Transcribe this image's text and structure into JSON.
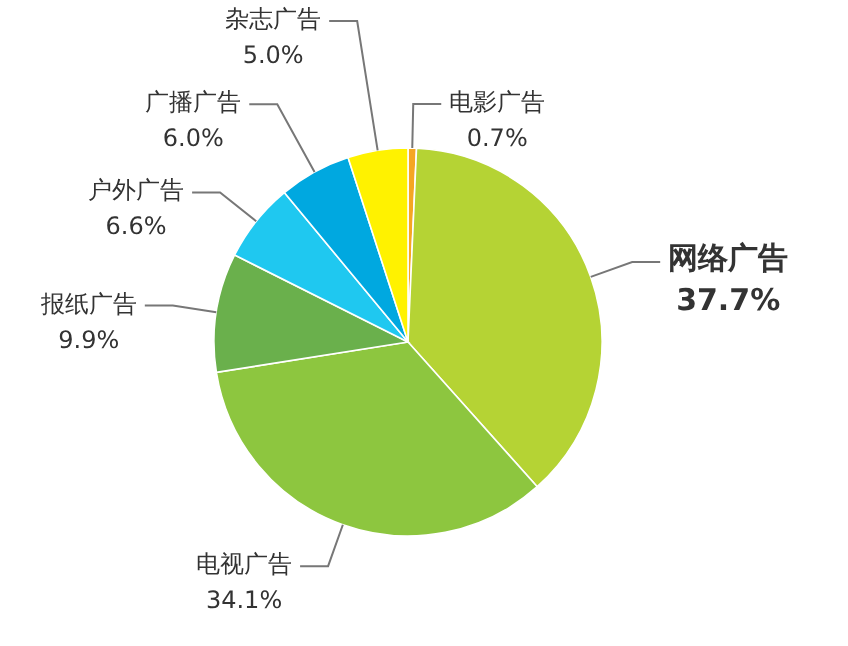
{
  "chart_data": {
    "type": "pie",
    "categories": [
      "电影广告",
      "网络广告",
      "电视广告",
      "报纸广告",
      "户外广告",
      "广播广告",
      "杂志广告"
    ],
    "values": [
      0.7,
      37.7,
      34.1,
      9.9,
      6.6,
      6.0,
      5.0
    ],
    "value_labels": [
      "0.7%",
      "37.7%",
      "34.1%",
      "9.9%",
      "6.6%",
      "6.0%",
      "5.0%"
    ],
    "colors": [
      "#f5a623",
      "#b5d334",
      "#8dc63f",
      "#6ab04c",
      "#1fc8f0",
      "#00a8e0",
      "#fff200"
    ]
  }
}
